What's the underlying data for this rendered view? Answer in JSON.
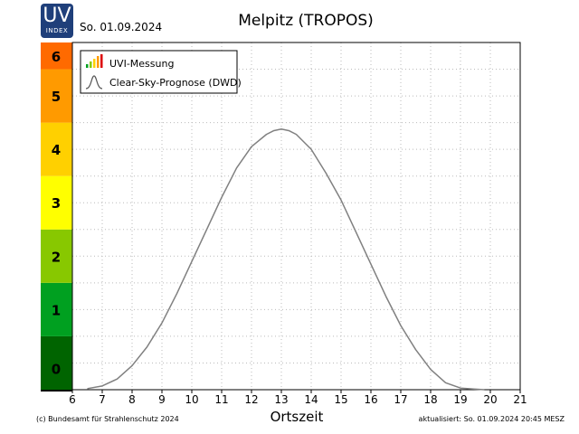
{
  "logo": {
    "uv": "UV",
    "index": "INDEX"
  },
  "date_label": "So. 01.09.2024",
  "footer": {
    "left": "(c) Bundesamt für Strahlenschutz 2024",
    "right": "aktualisiert: So. 01.09.2024  20:45  MESZ"
  },
  "chart_data": {
    "type": "line",
    "title": "Melpitz (TROPOS)",
    "xlabel": "Ortszeit",
    "ylabel": "",
    "xlim": [
      6,
      21
    ],
    "ylim": [
      0,
      6.5
    ],
    "x_ticks": [
      6,
      7,
      8,
      9,
      10,
      11,
      12,
      13,
      14,
      15,
      16,
      17,
      18,
      19,
      20,
      21
    ],
    "grid": true,
    "legend": {
      "position": "top-left",
      "entries": [
        "UVI-Messung",
        "Clear-Sky-Prognose (DWD)"
      ]
    },
    "uv_scale": [
      {
        "level": "0",
        "color": "#006400"
      },
      {
        "level": "1",
        "color": "#00a020"
      },
      {
        "level": "2",
        "color": "#88c800"
      },
      {
        "level": "3",
        "color": "#ffff00"
      },
      {
        "level": "4",
        "color": "#ffd000"
      },
      {
        "level": "5",
        "color": "#ff9a00"
      },
      {
        "level": "6",
        "color": "#ff6a00"
      }
    ],
    "series": [
      {
        "name": "Clear-Sky-Prognose (DWD)",
        "color": "#808080",
        "x": [
          6.5,
          7,
          7.5,
          8,
          8.5,
          9,
          9.5,
          10,
          10.5,
          11,
          11.5,
          12,
          12.5,
          12.75,
          13,
          13.25,
          13.5,
          14,
          14.5,
          15,
          15.5,
          16,
          16.5,
          17,
          17.5,
          18,
          18.5,
          19,
          19.5,
          19.8
        ],
        "y": [
          0.02,
          0.07,
          0.2,
          0.45,
          0.8,
          1.25,
          1.8,
          2.4,
          3.0,
          3.6,
          4.15,
          4.55,
          4.78,
          4.85,
          4.88,
          4.85,
          4.78,
          4.5,
          4.05,
          3.55,
          2.95,
          2.35,
          1.75,
          1.2,
          0.75,
          0.38,
          0.13,
          0.03,
          0.01,
          0.0
        ]
      },
      {
        "name": "UVI-Messung",
        "color": "#cc0000",
        "x": [],
        "y": []
      }
    ]
  }
}
